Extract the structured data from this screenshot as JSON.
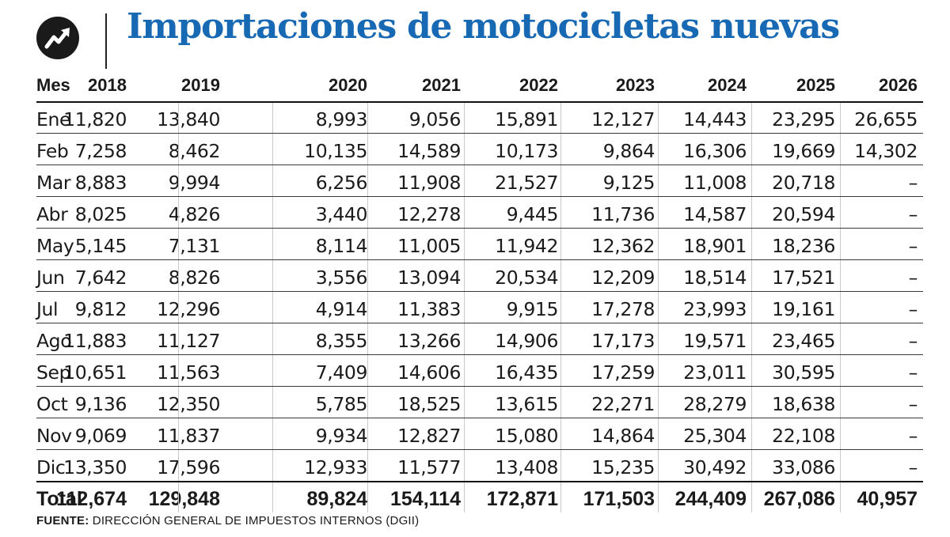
{
  "header": {
    "logo_icon": "trend-arrow-icon",
    "title": "Importaciones de motocicletas nuevas"
  },
  "colors": {
    "title": "#1769b3",
    "text": "#1a1a1a"
  },
  "chart_data": {
    "type": "table",
    "title": "Importaciones de motocicletas nuevas",
    "columns": [
      "Mes",
      "2018",
      "2019",
      "2020",
      "2021",
      "2022",
      "2023",
      "2024",
      "2025",
      "2026"
    ],
    "rows": [
      {
        "month": "Ene",
        "values": [
          "11,820",
          "13,840",
          "8,993",
          "9,056",
          "15,891",
          "12,127",
          "14,443",
          "23,295",
          "26,655"
        ]
      },
      {
        "month": "Feb",
        "values": [
          "7,258",
          "8,462",
          "10,135",
          "14,589",
          "10,173",
          "9,864",
          "16,306",
          "19,669",
          "14,302"
        ]
      },
      {
        "month": "Mar",
        "values": [
          "8,883",
          "9,994",
          "6,256",
          "11,908",
          "21,527",
          "9,125",
          "11,008",
          "20,718",
          "–"
        ]
      },
      {
        "month": "Abr",
        "values": [
          "8,025",
          "4,826",
          "3,440",
          "12,278",
          "9,445",
          "11,736",
          "14,587",
          "20,594",
          "–"
        ]
      },
      {
        "month": "May",
        "values": [
          "5,145",
          "7,131",
          "8,114",
          "11,005",
          "11,942",
          "12,362",
          "18,901",
          "18,236",
          "–"
        ]
      },
      {
        "month": "Jun",
        "values": [
          "7,642",
          "8,826",
          "3,556",
          "13,094",
          "20,534",
          "12,209",
          "18,514",
          "17,521",
          "–"
        ]
      },
      {
        "month": "Jul",
        "values": [
          "9,812",
          "12,296",
          "4,914",
          "11,383",
          "9,915",
          "17,278",
          "23,993",
          "19,161",
          "–"
        ]
      },
      {
        "month": "Ago",
        "values": [
          "11,883",
          "11,127",
          "8,355",
          "13,266",
          "14,906",
          "17,173",
          "19,571",
          "23,465",
          "–"
        ]
      },
      {
        "month": "Sep",
        "values": [
          "10,651",
          "11,563",
          "7,409",
          "14,606",
          "16,435",
          "17,259",
          "23,011",
          "30,595",
          "–"
        ]
      },
      {
        "month": "Oct",
        "values": [
          "9,136",
          "12,350",
          "5,785",
          "18,525",
          "13,615",
          "22,271",
          "28,279",
          "18,638",
          "–"
        ]
      },
      {
        "month": "Nov",
        "values": [
          "9,069",
          "11,837",
          "9,934",
          "12,827",
          "15,080",
          "14,864",
          "25,304",
          "22,108",
          "–"
        ]
      },
      {
        "month": "Dic",
        "values": [
          "13,350",
          "17,596",
          "12,933",
          "11,577",
          "13,408",
          "15,235",
          "30,492",
          "33,086",
          "–"
        ]
      }
    ],
    "total": {
      "label": "Total",
      "values": [
        "112,674",
        "129,848",
        "89,824",
        "154,114",
        "172,871",
        "171,503",
        "244,409",
        "267,086",
        "40,957"
      ]
    }
  },
  "footer": {
    "source_label": "FUENTE:",
    "source_text": "DIRECCIÓN GENERAL DE IMPUESTOS INTERNOS (DGII)"
  }
}
